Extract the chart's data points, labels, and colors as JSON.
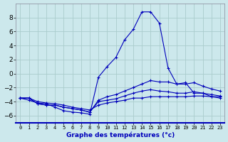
{
  "title": "Graphe des températures (°c)",
  "x_labels": [
    "0",
    "1",
    "2",
    "3",
    "4",
    "5",
    "6",
    "7",
    "8",
    "9",
    "10",
    "11",
    "12",
    "13",
    "14",
    "15",
    "16",
    "17",
    "18",
    "19",
    "20",
    "21",
    "22",
    "23"
  ],
  "xlim": [
    -0.5,
    23.5
  ],
  "ylim": [
    -7,
    10
  ],
  "yticks": [
    -6,
    -4,
    -2,
    0,
    2,
    4,
    6,
    8
  ],
  "background_color": "#cce8ec",
  "grid_color": "#aacccc",
  "line_color": "#0000bb",
  "line1_y": [
    -3.5,
    -3.8,
    -4.2,
    -4.3,
    -4.8,
    -5.3,
    -5.5,
    -5.6,
    -5.8,
    -0.5,
    1.0,
    2.3,
    4.8,
    6.3,
    8.8,
    8.8,
    7.2,
    0.8,
    -1.5,
    -1.3,
    -2.8,
    -2.8,
    -3.3,
    -3.3
  ],
  "line2_y": [
    -3.5,
    -3.5,
    -4.3,
    -4.5,
    -4.5,
    -4.8,
    -5.0,
    -5.2,
    -5.5,
    -3.8,
    -3.3,
    -3.0,
    -2.5,
    -2.0,
    -1.5,
    -1.0,
    -1.2,
    -1.2,
    -1.5,
    -1.5,
    -1.3,
    -1.8,
    -2.2,
    -2.5
  ],
  "line3_y": [
    -3.5,
    -3.5,
    -4.3,
    -4.5,
    -4.5,
    -4.8,
    -5.0,
    -5.2,
    -5.5,
    -4.0,
    -3.8,
    -3.6,
    -3.2,
    -2.8,
    -2.5,
    -2.3,
    -2.5,
    -2.6,
    -2.8,
    -2.8,
    -2.6,
    -2.8,
    -3.0,
    -3.2
  ],
  "line4_y": [
    -3.5,
    -3.5,
    -4.0,
    -4.2,
    -4.3,
    -4.5,
    -4.8,
    -5.0,
    -5.2,
    -4.5,
    -4.2,
    -4.0,
    -3.8,
    -3.5,
    -3.5,
    -3.3,
    -3.3,
    -3.3,
    -3.3,
    -3.3,
    -3.2,
    -3.2,
    -3.3,
    -3.5
  ]
}
